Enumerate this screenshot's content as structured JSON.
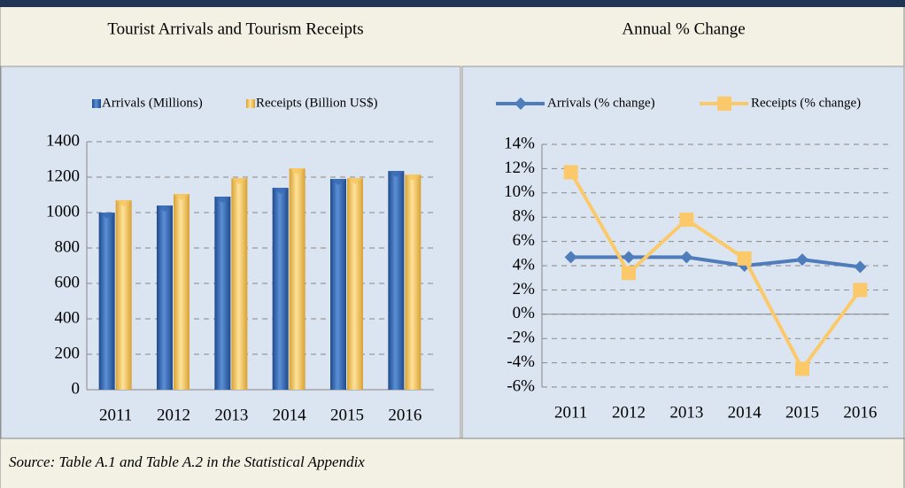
{
  "chart_data": [
    {
      "type": "bar",
      "title": "Tourist Arrivals and Tourism Receipts",
      "categories": [
        "2011",
        "2012",
        "2013",
        "2014",
        "2015",
        "2016"
      ],
      "series": [
        {
          "name": "Arrivals (Millions)",
          "color": "#3a6ab4",
          "values": [
            1000,
            1040,
            1090,
            1140,
            1190,
            1235
          ]
        },
        {
          "name": "Receipts (Billion US$)",
          "color": "#f5c55c",
          "values": [
            1070,
            1105,
            1195,
            1250,
            1195,
            1215
          ]
        }
      ],
      "ylim": [
        0,
        1400
      ],
      "yticks": [
        0,
        200,
        400,
        600,
        800,
        1000,
        1200,
        1400
      ],
      "grid": true,
      "legend": "top"
    },
    {
      "type": "line",
      "title": "Annual % Change",
      "categories": [
        "2011",
        "2012",
        "2013",
        "2014",
        "2015",
        "2016"
      ],
      "series": [
        {
          "name": "Arrivals (% change)",
          "color": "#4f7cba",
          "values": [
            4.7,
            4.7,
            4.7,
            4.0,
            4.5,
            3.9
          ]
        },
        {
          "name": "Receipts (% change)",
          "color": "#fcc96a",
          "values": [
            11.7,
            3.4,
            7.8,
            4.6,
            -4.5,
            2.0
          ]
        }
      ],
      "ylim": [
        -6,
        14
      ],
      "yticks": [
        {
          "value": -6,
          "label": "-6%"
        },
        {
          "value": -4,
          "label": "-4%"
        },
        {
          "value": -2,
          "label": "-2%"
        },
        {
          "value": 0,
          "label": "0%"
        },
        {
          "value": 2,
          "label": "2%"
        },
        {
          "value": 4,
          "label": "4%"
        },
        {
          "value": 6,
          "label": "6%"
        },
        {
          "value": 8,
          "label": "8%"
        },
        {
          "value": 10,
          "label": "10%"
        },
        {
          "value": 12,
          "label": "12%"
        },
        {
          "value": 14,
          "label": "14%"
        }
      ],
      "grid": true,
      "legend": "top"
    }
  ],
  "source": "Source: Table A.1 and Table A.2 in the Statistical Appendix"
}
